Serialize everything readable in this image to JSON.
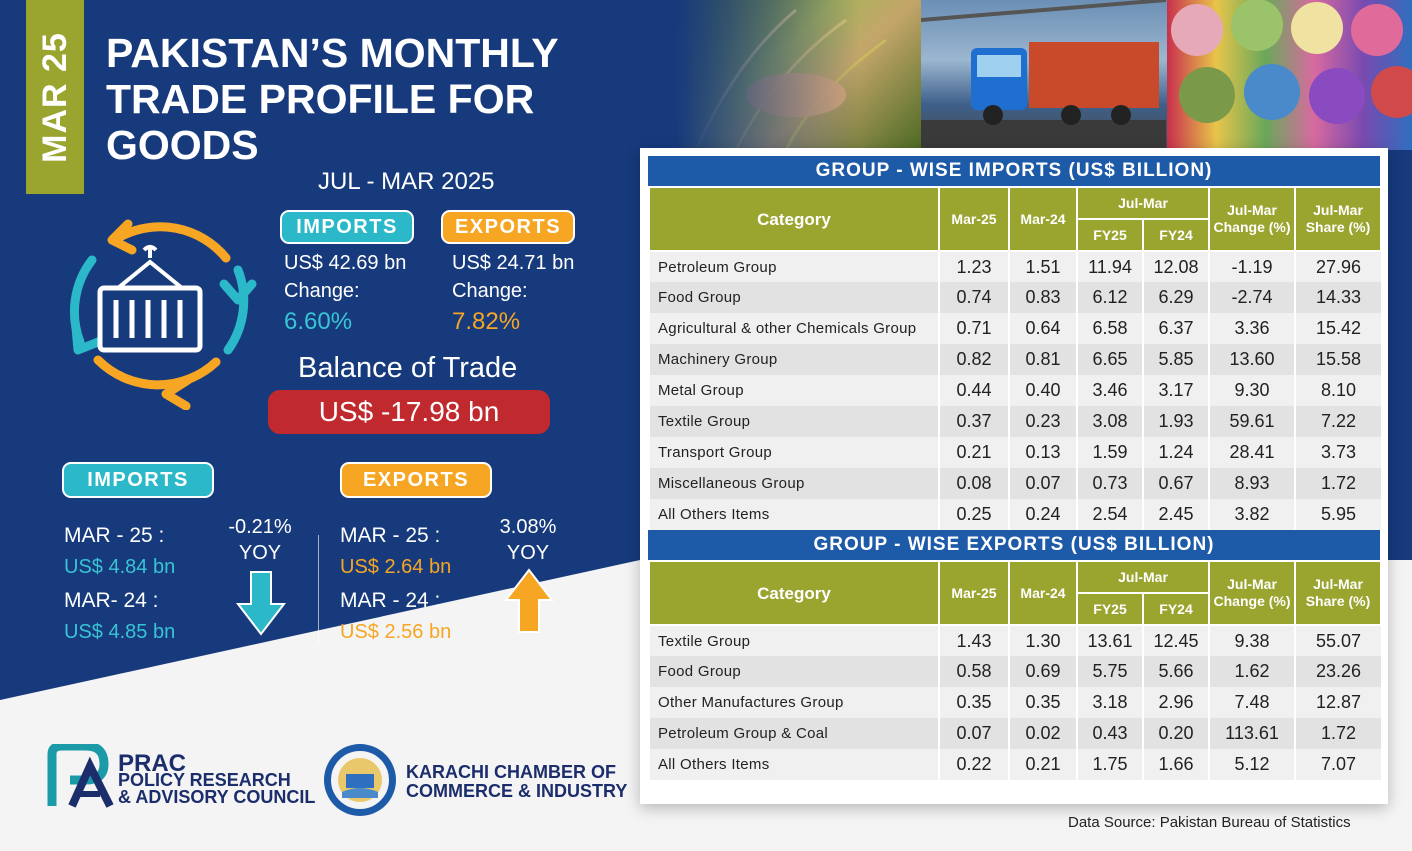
{
  "header": {
    "month_tab": "MAR 25",
    "title_lines": [
      "PAKISTAN’S MONTHLY",
      "TRADE PROFILE FOR",
      "GOODS"
    ],
    "period": "JUL - MAR  2025"
  },
  "summary": {
    "imports_label": "IMPORTS",
    "imports_value": "US$ 42.69 bn",
    "imports_change_label": "Change:",
    "imports_change": "6.60%",
    "exports_label": "EXPORTS",
    "exports_value": "US$ 24.71 bn",
    "exports_change_label": "Change:",
    "exports_change": "7.82%",
    "balance_label": "Balance of Trade",
    "balance_value": "US$ -17.98  bn"
  },
  "monthly": {
    "imports": {
      "label": "IMPORTS",
      "cur_label": "MAR - 25 :",
      "cur_value": "US$ 4.84 bn",
      "prev_label": "MAR- 24 :",
      "prev_value": "US$ 4.85  bn",
      "yoy_value": "-0.21%",
      "yoy_label": "YOY"
    },
    "exports": {
      "label": "EXPORTS",
      "cur_label": "MAR - 25 :",
      "cur_value": "US$ 2.64 bn",
      "prev_label": "MAR - 24 :",
      "prev_value": "US$ 2.56 bn",
      "yoy_value": "3.08%",
      "yoy_label": "YOY"
    }
  },
  "columns": {
    "category": "Category",
    "mar25": "Mar-25",
    "mar24": "Mar-24",
    "julmar": "Jul-Mar",
    "fy25": "FY25",
    "fy24": "FY24",
    "change_l1": "Jul-Mar",
    "change_l2": "Change (%)",
    "share_l1": "Jul-Mar",
    "share_l2": "Share (%)"
  },
  "imports_table": {
    "title": "GROUP - WISE IMPORTS (US$ BILLION)",
    "rows": [
      {
        "name": "Petroleum Group",
        "mar25": "1.23",
        "mar24": "1.51",
        "fy25": "11.94",
        "fy24": "12.08",
        "change": "-1.19",
        "share": "27.96"
      },
      {
        "name": "Food Group",
        "mar25": "0.74",
        "mar24": "0.83",
        "fy25": "6.12",
        "fy24": "6.29",
        "change": "-2.74",
        "share": "14.33"
      },
      {
        "name": "Agricultural & other Chemicals Group",
        "mar25": "0.71",
        "mar24": "0.64",
        "fy25": "6.58",
        "fy24": "6.37",
        "change": "3.36",
        "share": "15.42"
      },
      {
        "name": "Machinery Group",
        "mar25": "0.82",
        "mar24": "0.81",
        "fy25": "6.65",
        "fy24": "5.85",
        "change": "13.60",
        "share": "15.58"
      },
      {
        "name": "Metal Group",
        "mar25": "0.44",
        "mar24": "0.40",
        "fy25": "3.46",
        "fy24": "3.17",
        "change": "9.30",
        "share": "8.10"
      },
      {
        "name": "Textile Group",
        "mar25": "0.37",
        "mar24": "0.23",
        "fy25": "3.08",
        "fy24": "1.93",
        "change": "59.61",
        "share": "7.22"
      },
      {
        "name": "Transport Group",
        "mar25": "0.21",
        "mar24": "0.13",
        "fy25": "1.59",
        "fy24": "1.24",
        "change": "28.41",
        "share": "3.73"
      },
      {
        "name": "Miscellaneous Group",
        "mar25": "0.08",
        "mar24": "0.07",
        "fy25": "0.73",
        "fy24": "0.67",
        "change": "8.93",
        "share": "1.72"
      },
      {
        "name": "All Others Items",
        "mar25": "0.25",
        "mar24": "0.24",
        "fy25": "2.54",
        "fy24": "2.45",
        "change": "3.82",
        "share": "5.95"
      }
    ]
  },
  "exports_table": {
    "title": "GROUP - WISE EXPORTS (US$ BILLION)",
    "rows": [
      {
        "name": "Textile Group",
        "mar25": "1.43",
        "mar24": "1.30",
        "fy25": "13.61",
        "fy24": "12.45",
        "change": "9.38",
        "share": "55.07"
      },
      {
        "name": "Food Group",
        "mar25": "0.58",
        "mar24": "0.69",
        "fy25": "5.75",
        "fy24": "5.66",
        "change": "1.62",
        "share": "23.26"
      },
      {
        "name": "Other Manufactures Group",
        "mar25": "0.35",
        "mar24": "0.35",
        "fy25": "3.18",
        "fy24": "2.96",
        "change": "7.48",
        "share": "12.87"
      },
      {
        "name": "Petroleum Group & Coal",
        "mar25": "0.07",
        "mar24": "0.02",
        "fy25": "0.43",
        "fy24": "0.20",
        "change": "113.61",
        "share": "1.72"
      },
      {
        "name": "All Others Items",
        "mar25": "0.22",
        "mar24": "0.21",
        "fy25": "1.75",
        "fy24": "1.66",
        "change": "5.12",
        "share": "7.07"
      }
    ]
  },
  "footer": {
    "prac_name": "PRAC",
    "prac_line1": "POLICY RESEARCH",
    "prac_line2": "& ADVISORY COUNCIL",
    "kcci_line1": "KARACHI CHAMBER OF",
    "kcci_line2": "COMMERCE & INDUSTRY",
    "source": "Data Source: Pakistan Bureau of Statistics"
  },
  "colors": {
    "navy": "#173a7c",
    "olive": "#9aa530",
    "teal": "#2bb8c8",
    "orange": "#f6a623",
    "red": "#c0292e",
    "table_header": "#1d5aa8"
  },
  "icons": [
    "container-cycle-icon",
    "down-arrow-icon",
    "up-arrow-icon",
    "prac-logo-icon",
    "kcci-seal-icon"
  ]
}
